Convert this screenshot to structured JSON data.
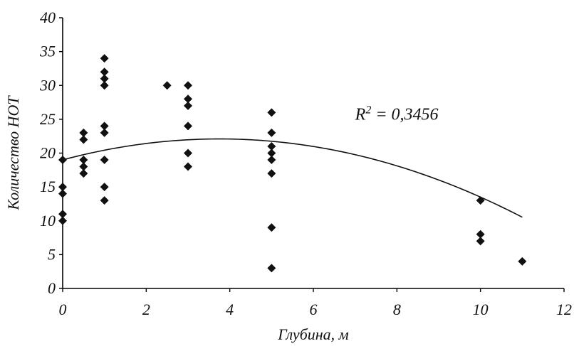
{
  "chart_data": {
    "type": "scatter",
    "xlabel": "Глубина, м",
    "ylabel": "Количество НОТ",
    "xlim": [
      0,
      12
    ],
    "ylim": [
      0,
      40
    ],
    "x_ticks": [
      "0",
      "2",
      "4",
      "6",
      "8",
      "10",
      "12"
    ],
    "y_ticks": [
      "0",
      "5",
      "10",
      "15",
      "20",
      "25",
      "30",
      "35",
      "40"
    ],
    "grid": false,
    "legend": "none",
    "annotation": {
      "prefix": "R",
      "exponent": "2",
      "suffix": " = 0,3456"
    },
    "points": [
      {
        "x": 0,
        "y": 19
      },
      {
        "x": 0,
        "y": 15
      },
      {
        "x": 0,
        "y": 14
      },
      {
        "x": 0,
        "y": 11
      },
      {
        "x": 0,
        "y": 10
      },
      {
        "x": 0.5,
        "y": 23
      },
      {
        "x": 0.5,
        "y": 22
      },
      {
        "x": 0.5,
        "y": 19
      },
      {
        "x": 0.5,
        "y": 18
      },
      {
        "x": 0.5,
        "y": 17
      },
      {
        "x": 1,
        "y": 34
      },
      {
        "x": 1,
        "y": 32
      },
      {
        "x": 1,
        "y": 31
      },
      {
        "x": 1,
        "y": 30
      },
      {
        "x": 1,
        "y": 24
      },
      {
        "x": 1,
        "y": 23
      },
      {
        "x": 1,
        "y": 19
      },
      {
        "x": 1,
        "y": 15
      },
      {
        "x": 1,
        "y": 13
      },
      {
        "x": 2.5,
        "y": 30
      },
      {
        "x": 3,
        "y": 30
      },
      {
        "x": 3,
        "y": 28
      },
      {
        "x": 3,
        "y": 27
      },
      {
        "x": 3,
        "y": 24
      },
      {
        "x": 3,
        "y": 20
      },
      {
        "x": 3,
        "y": 18
      },
      {
        "x": 5,
        "y": 26
      },
      {
        "x": 5,
        "y": 23
      },
      {
        "x": 5,
        "y": 21
      },
      {
        "x": 5,
        "y": 20
      },
      {
        "x": 5,
        "y": 19
      },
      {
        "x": 5,
        "y": 17
      },
      {
        "x": 5,
        "y": 9
      },
      {
        "x": 5,
        "y": 3
      },
      {
        "x": 10,
        "y": 13
      },
      {
        "x": 10,
        "y": 8
      },
      {
        "x": 10,
        "y": 7
      },
      {
        "x": 11,
        "y": 4
      }
    ],
    "trendline": {
      "type": "polynomial-2",
      "coefficients": [
        -0.22,
        1.65,
        19.0
      ],
      "x_range": [
        0,
        11
      ]
    },
    "colors": {
      "marker": "#111111",
      "line": "#111111"
    }
  }
}
